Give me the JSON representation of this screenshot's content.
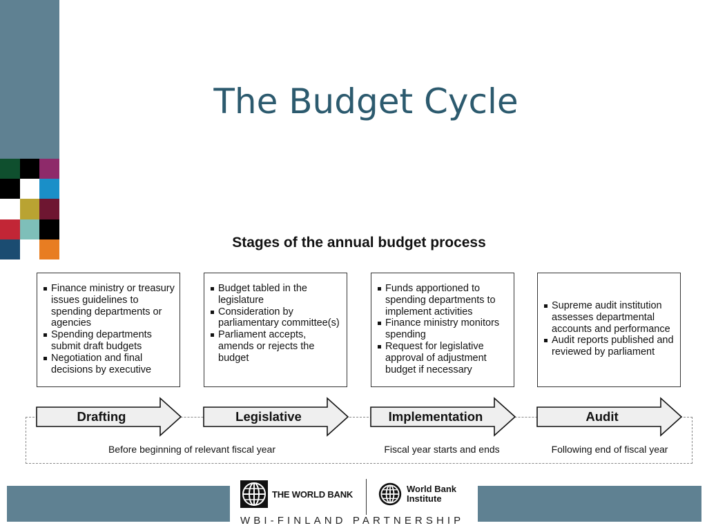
{
  "slide": {
    "title": "The Budget Cycle"
  },
  "decor": {
    "sidebar_color": "#5f8192",
    "mosaic_colors": [
      "#0f4f2e",
      "#000000",
      "#8e2a6a",
      "#000000",
      "#ffffff",
      "#1a8fc8",
      "#ffffff",
      "#b9a332",
      "#6e1631",
      "#c22636",
      "#7ebfb9",
      "#000000",
      "#1b4c71",
      "#ffffff",
      "#e87d22"
    ]
  },
  "diagram": {
    "title": "Stages of the annual budget process",
    "stages": [
      {
        "label": "Drafting",
        "items": [
          "Finance ministry or treasury issues guidelines to spending departments or agencies",
          "Spending departments submit draft budgets",
          "Negotiation and final decisions by executive"
        ]
      },
      {
        "label": "Legislative",
        "items": [
          "Budget tabled in the legislature",
          "Consideration by parliamentary committee(s)",
          "Parliament accepts, amends or rejects the budget"
        ]
      },
      {
        "label": "Implementation",
        "items": [
          "Funds apportioned to spending departments to implement activities",
          "Finance ministry monitors spending",
          "Request for legislative approval of adjustment budget if necessary"
        ]
      },
      {
        "label": "Audit",
        "items": [
          "Supreme audit institution assesses departmental accounts and performance",
          "Audit reports published and reviewed by parliament"
        ]
      }
    ],
    "periods": [
      "Before beginning of relevant fiscal year",
      "Fiscal year starts and ends",
      "Following end of fiscal year"
    ]
  },
  "footer": {
    "world_bank": "THE WORLD BANK",
    "wbi_line1": "World Bank",
    "wbi_line2": "Institute",
    "partnership": "WBI-FINLAND PARTNERSHIP"
  }
}
